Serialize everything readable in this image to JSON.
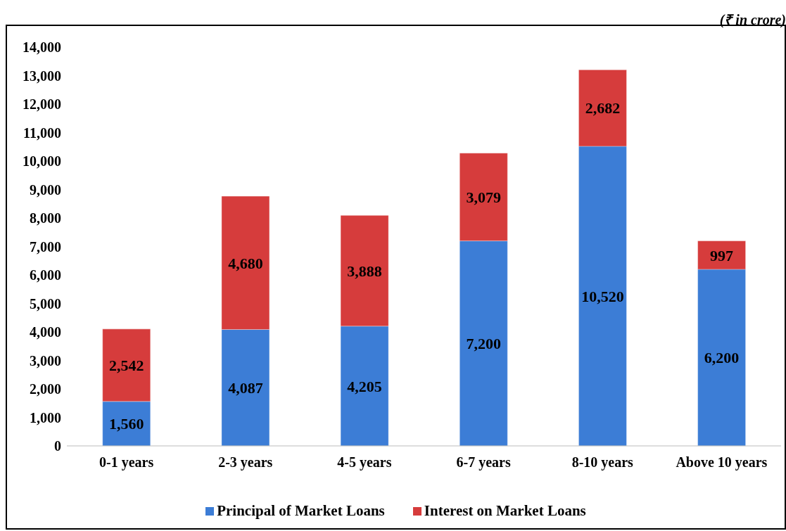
{
  "chart_data": {
    "type": "bar",
    "stacked": true,
    "annotations": [
      "(₹ in crore)"
    ],
    "categories": [
      "0-1 years",
      "2-3 years",
      "4-5 years",
      "6-7 years",
      "8-10 years",
      "Above 10 years"
    ],
    "series": [
      {
        "name": "Principal of Market Loans",
        "color": "#3c7dd6",
        "values": [
          1560,
          4087,
          4205,
          7200,
          10520,
          6200
        ],
        "value_labels": [
          "1,560",
          "4,087",
          "4,205",
          "7,200",
          "10,520",
          "6,200"
        ]
      },
      {
        "name": "Interest on Market Loans",
        "color": "#d63c3c",
        "values": [
          2542,
          4680,
          3888,
          3079,
          2682,
          997
        ],
        "value_labels": [
          "2,542",
          "4,680",
          "3,888",
          "3,079",
          "2,682",
          "997"
        ]
      }
    ],
    "ylim": [
      0,
      14000
    ],
    "yticks": [
      0,
      {
        "value": 1000,
        "label": "1,000"
      },
      {
        "value": 2000,
        "label": "2,000"
      },
      {
        "value": 3000,
        "label": "3,000"
      },
      {
        "value": 4000,
        "label": "4,000"
      },
      {
        "value": 5000,
        "label": "5,000"
      },
      {
        "value": 6000,
        "label": "6,000"
      },
      {
        "value": 7000,
        "label": "7,000"
      },
      {
        "value": 8000,
        "label": "8,000"
      },
      {
        "value": 9000,
        "label": "9,000"
      },
      {
        "value": 10000,
        "label": "10,000"
      },
      {
        "value": 11000,
        "label": "11,000"
      },
      {
        "value": 12000,
        "label": "12,000"
      },
      {
        "value": 13000,
        "label": "13,000"
      },
      {
        "value": 14000,
        "label": "14,000"
      }
    ],
    "grid": false,
    "legend": "bottom"
  }
}
